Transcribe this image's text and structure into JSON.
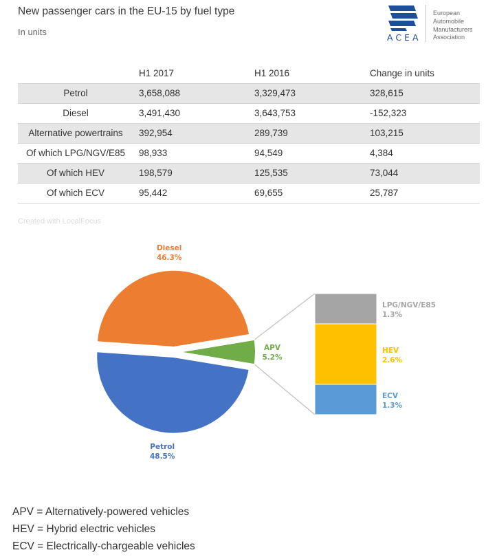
{
  "header": {
    "title": "New passenger cars in the EU-15 by fuel type",
    "subtitle": "In units"
  },
  "logo": {
    "acronym": "ACEA",
    "name_lines": [
      "European",
      "Automobile",
      "Manufacturers",
      "Association"
    ],
    "brand_color": "#1d4f9a"
  },
  "table": {
    "columns": [
      "",
      "H1 2017",
      "H1 2016",
      "Change in units"
    ],
    "rows": [
      {
        "label": "Petrol",
        "h1_2017": "3,658,088",
        "h1_2016": "3,329,473",
        "change": "328,615"
      },
      {
        "label": "Diesel",
        "h1_2017": "3,491,430",
        "h1_2016": "3,643,753",
        "change": "-152,323"
      },
      {
        "label": "Alternative powertrains",
        "h1_2017": "392,954",
        "h1_2016": "289,739",
        "change": "103,215"
      },
      {
        "label": "Of which LPG/NGV/E85",
        "h1_2017": "98,933",
        "h1_2016": "94,549",
        "change": "4,384"
      },
      {
        "label": "Of which HEV",
        "h1_2017": "198,579",
        "h1_2016": "125,535",
        "change": "73,044"
      },
      {
        "label": "Of which ECV",
        "h1_2017": "95,442",
        "h1_2016": "69,655",
        "change": "25,787"
      }
    ]
  },
  "credit": "Created with LocalFocus",
  "chart_data": {
    "type": "pie",
    "slices": [
      {
        "name": "Petrol",
        "value": 48.5,
        "label": "48.5%",
        "color": "#4472c4"
      },
      {
        "name": "Diesel",
        "value": 46.3,
        "label": "46.3%",
        "color": "#ed7d31"
      },
      {
        "name": "APV",
        "value": 5.2,
        "label": "5.2%",
        "color": "#70ad47"
      }
    ],
    "breakdown_of": "APV",
    "breakdown": [
      {
        "name": "LPG/NGV/E85",
        "value": 1.3,
        "label": "1.3%",
        "color": "#a5a5a5"
      },
      {
        "name": "HEV",
        "value": 2.6,
        "label": "2.6%",
        "color": "#ffc000"
      },
      {
        "name": "ECV",
        "value": 1.3,
        "label": "1.3%",
        "color": "#5b9bd5"
      }
    ]
  },
  "notes": [
    "APV = Alternatively-powered vehicles",
    "HEV = Hybrid electric vehicles",
    "ECV = Electrically-chargeable vehicles"
  ]
}
